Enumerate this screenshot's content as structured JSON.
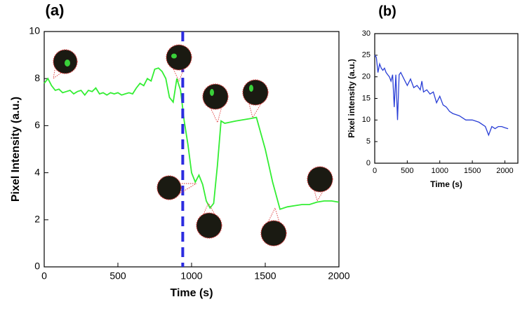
{
  "chart_data": [
    {
      "type": "line",
      "title": "(a)",
      "x_label": "Time (s)",
      "y_label": "Pixel Intensity (a.u.)",
      "xlim": [
        0,
        2000
      ],
      "ylim": [
        0,
        10
      ],
      "xticks": [
        0,
        500,
        1000,
        1500,
        2000
      ],
      "yticks": [
        0,
        2,
        4,
        6,
        8,
        10
      ],
      "vline": 940,
      "vline_color": "#2b2be0",
      "series": [
        {
          "color": "#33ee33",
          "x": [
            0,
            25,
            50,
            75,
            100,
            125,
            150,
            175,
            200,
            225,
            250,
            275,
            300,
            325,
            350,
            375,
            400,
            425,
            450,
            475,
            500,
            525,
            550,
            575,
            600,
            625,
            650,
            675,
            700,
            725,
            750,
            775,
            800,
            825,
            850,
            875,
            900,
            925,
            950,
            975,
            1000,
            1025,
            1050,
            1075,
            1100,
            1125,
            1150,
            1175,
            1200,
            1225,
            1300,
            1400,
            1440,
            1500,
            1550,
            1600,
            1650,
            1700,
            1750,
            1800,
            1850,
            1900,
            1950,
            2000
          ],
          "values": [
            7.8,
            8.0,
            7.7,
            7.5,
            7.55,
            7.4,
            7.45,
            7.5,
            7.35,
            7.45,
            7.5,
            7.3,
            7.5,
            7.45,
            7.6,
            7.35,
            7.4,
            7.3,
            7.4,
            7.35,
            7.4,
            7.3,
            7.35,
            7.4,
            7.35,
            7.6,
            7.8,
            7.7,
            8.0,
            7.9,
            8.4,
            8.45,
            8.3,
            8.0,
            7.2,
            7.0,
            8.0,
            7.5,
            6.2,
            5.2,
            4.0,
            3.6,
            3.9,
            3.5,
            2.8,
            2.5,
            2.7,
            4.3,
            6.2,
            6.1,
            6.2,
            6.3,
            6.35,
            5.0,
            3.6,
            2.45,
            2.55,
            2.6,
            2.65,
            2.65,
            2.75,
            2.8,
            2.8,
            2.75
          ]
        }
      ]
    },
    {
      "type": "line",
      "title": "(b)",
      "x_label": "Time (s)",
      "y_label": "Pixel intensity (a.u.)",
      "xlim": [
        0,
        2200
      ],
      "ylim": [
        0,
        30
      ],
      "xticks": [
        0,
        500,
        1000,
        1500,
        2000
      ],
      "yticks": [
        0,
        5,
        10,
        15,
        20,
        25,
        30
      ],
      "series": [
        {
          "color": "#2a3fd6",
          "x": [
            0,
            25,
            50,
            75,
            100,
            125,
            150,
            175,
            200,
            225,
            250,
            275,
            300,
            325,
            350,
            375,
            400,
            450,
            500,
            550,
            600,
            650,
            700,
            725,
            750,
            800,
            850,
            900,
            950,
            1000,
            1050,
            1100,
            1150,
            1200,
            1300,
            1400,
            1500,
            1600,
            1700,
            1750,
            1800,
            1850,
            1900,
            1950,
            2000,
            2050
          ],
          "values": [
            25,
            24.5,
            21,
            23,
            22,
            21.5,
            22,
            21,
            20.5,
            20,
            19,
            20.5,
            13,
            20.5,
            10,
            20.5,
            21,
            19.5,
            18,
            19.5,
            17.5,
            18,
            17,
            19,
            16.5,
            17,
            16,
            16.5,
            14,
            15.5,
            13.5,
            13,
            12,
            11.5,
            11,
            10,
            10,
            9.5,
            8.5,
            6.5,
            8.5,
            8,
            8.5,
            8.5,
            8.2,
            8
          ]
        }
      ]
    }
  ]
}
